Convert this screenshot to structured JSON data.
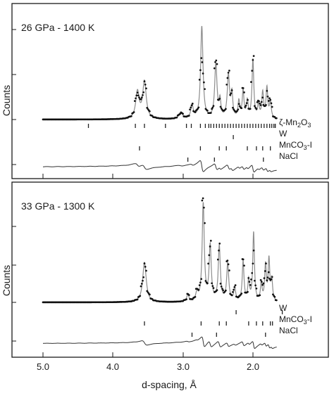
{
  "chart_data": {
    "type": "line",
    "xlabel": "d-spacing, Å",
    "ylabel": "Counts",
    "xlim": [
      5.15,
      1.35
    ],
    "x_axis_reversed": true,
    "x_ticks": [
      5.0,
      4.0,
      3.0,
      2.0
    ],
    "x_tick_labels": [
      "5.0",
      "4.0",
      "3.0",
      "2.0"
    ],
    "panels": [
      {
        "title": "26 GPa - 1400 K",
        "series": [
          {
            "role": "observed",
            "style": "dots"
          },
          {
            "role": "calculated",
            "style": "gray line"
          },
          {
            "role": "difference",
            "style": "line"
          }
        ],
        "peaks": [
          {
            "d": 3.65,
            "height": 0.4,
            "width": 0.03
          },
          {
            "d": 3.55,
            "height": 0.55,
            "width": 0.03
          },
          {
            "d": 3.03,
            "height": 0.1,
            "width": 0.03
          },
          {
            "d": 2.87,
            "height": 0.2,
            "width": 0.02
          },
          {
            "d": 2.73,
            "height": 1.37,
            "width": 0.02
          },
          {
            "d": 2.53,
            "height": 0.8,
            "width": 0.02
          },
          {
            "d": 2.47,
            "height": 0.25,
            "width": 0.015
          },
          {
            "d": 2.35,
            "height": 0.64,
            "width": 0.02
          },
          {
            "d": 2.3,
            "height": 0.35,
            "width": 0.015
          },
          {
            "d": 2.2,
            "height": 0.25,
            "width": 0.015
          },
          {
            "d": 2.14,
            "height": 0.4,
            "width": 0.015
          },
          {
            "d": 2.08,
            "height": 0.25,
            "width": 0.015
          },
          {
            "d": 2.0,
            "height": 0.87,
            "width": 0.015
          },
          {
            "d": 1.92,
            "height": 0.2,
            "width": 0.015
          },
          {
            "d": 1.86,
            "height": 0.38,
            "width": 0.015
          },
          {
            "d": 1.8,
            "height": 0.45,
            "width": 0.015
          },
          {
            "d": 1.75,
            "height": 0.25,
            "width": 0.015
          }
        ],
        "phases": [
          {
            "name": "ζ-Mn2O3",
            "ticks": [
              4.35,
              3.68,
              3.55,
              3.25,
              2.95,
              2.88,
              2.75,
              2.68,
              2.63,
              2.6,
              2.56,
              2.52,
              2.48,
              2.44,
              2.4,
              2.36,
              2.32,
              2.28,
              2.24,
              2.2,
              2.16,
              2.12,
              2.08,
              2.04,
              2.0,
              1.96,
              1.92,
              1.88,
              1.84,
              1.8,
              1.76,
              1.73,
              1.7,
              1.68
            ]
          },
          {
            "name": "W",
            "ticks": [
              2.28
            ]
          },
          {
            "name": "MnCO3-I",
            "ticks": [
              3.62,
              2.75,
              2.48,
              2.38,
              2.08,
              1.95,
              1.86,
              1.75
            ]
          },
          {
            "name": "NaCl",
            "ticks": [
              2.93,
              2.55,
              1.85
            ]
          }
        ]
      },
      {
        "title": "33 GPa - 1300 K",
        "series": [
          {
            "role": "observed",
            "style": "dots"
          },
          {
            "role": "calculated",
            "style": "gray line"
          },
          {
            "role": "difference",
            "style": "line"
          }
        ],
        "peaks": [
          {
            "d": 3.55,
            "height": 0.58,
            "width": 0.03
          },
          {
            "d": 2.93,
            "height": 0.1,
            "width": 0.02
          },
          {
            "d": 2.8,
            "height": 0.12,
            "width": 0.02
          },
          {
            "d": 2.71,
            "height": 1.42,
            "width": 0.018
          },
          {
            "d": 2.61,
            "height": 0.8,
            "width": 0.018
          },
          {
            "d": 2.48,
            "height": 0.8,
            "width": 0.018
          },
          {
            "d": 2.36,
            "height": 0.55,
            "width": 0.018
          },
          {
            "d": 2.26,
            "height": 0.2,
            "width": 0.015
          },
          {
            "d": 2.14,
            "height": 0.58,
            "width": 0.015
          },
          {
            "d": 2.06,
            "height": 0.3,
            "width": 0.015
          },
          {
            "d": 1.99,
            "height": 1.0,
            "width": 0.014
          },
          {
            "d": 1.88,
            "height": 0.25,
            "width": 0.014
          },
          {
            "d": 1.82,
            "height": 0.52,
            "width": 0.014
          },
          {
            "d": 1.77,
            "height": 0.6,
            "width": 0.014
          },
          {
            "d": 1.73,
            "height": 0.3,
            "width": 0.014
          }
        ],
        "phases": [
          {
            "name": "W",
            "ticks": [
              2.24,
              1.58
            ]
          },
          {
            "name": "MnCO3-I",
            "ticks": [
              3.55,
              2.74,
              2.48,
              2.38,
              2.06,
              1.95,
              1.86,
              1.75,
              1.72
            ]
          },
          {
            "name": "NaCl",
            "ticks": [
              2.87,
              2.52,
              1.82
            ]
          }
        ]
      }
    ]
  },
  "labels": {
    "panel1_title": "26 GPa - 1400 K",
    "panel2_title": "33 GPa - 1300 K",
    "phase_zeta_prefix": "ζ-Mn",
    "phase_zeta_sub1": "2",
    "phase_zeta_mid": "O",
    "phase_zeta_sub2": "3",
    "phase_w": "W",
    "phase_mnco3_prefix": "MnCO",
    "phase_mnco3_sub": "3",
    "phase_mnco3_suffix": "-I",
    "phase_nacl": "NaCl",
    "ylabel": "Counts",
    "xlabel": "d-spacing, Å",
    "xtick_5": "5.0",
    "xtick_4": "4.0",
    "xtick_3": "3.0",
    "xtick_2": "2.0"
  },
  "colors": {
    "frame": "#1a1a1a",
    "observed": "#111111",
    "calculated": "#8c8c8c",
    "difference": "#333333",
    "ticks": "#222222"
  }
}
